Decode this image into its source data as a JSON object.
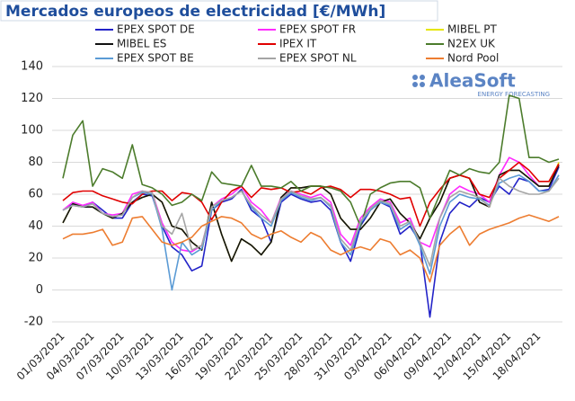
{
  "chart_data": {
    "type": "line",
    "title": "Mercados europeos de electricidad [€/MWh]",
    "logo": "AleaSoft",
    "logo_tagline": "ENERGY FORECASTING",
    "categories": [
      "01/03/2021",
      null,
      null,
      "04/03/2021",
      null,
      null,
      "07/03/2021",
      null,
      null,
      "10/03/2021",
      null,
      null,
      "13/03/2021",
      null,
      null,
      "16/03/2021",
      null,
      null,
      "19/03/2021",
      null,
      null,
      "22/03/2021",
      null,
      null,
      "25/03/2021",
      null,
      null,
      "28/03/2021",
      null,
      null,
      "31/03/2021",
      null,
      null,
      "03/04/2021",
      null,
      null,
      "06/04/2021",
      null,
      null,
      "09/04/2021",
      null,
      null,
      "12/04/2021",
      null,
      null,
      "15/04/2021",
      null,
      null,
      "18/04/2021",
      null,
      null
    ],
    "ylim": [
      -20,
      140
    ],
    "yticks": [
      -20,
      0,
      20,
      40,
      60,
      80,
      100,
      120,
      140
    ],
    "grid": true,
    "series": [
      {
        "name": "EPEX SPOT DE",
        "color": "#2323c8",
        "values": [
          50,
          54,
          52,
          55,
          50,
          45,
          45,
          55,
          60,
          59,
          40,
          27,
          22,
          12,
          15,
          50,
          55,
          57,
          63,
          50,
          45,
          30,
          55,
          60,
          57,
          55,
          56,
          50,
          30,
          18,
          40,
          50,
          55,
          52,
          35,
          40,
          30,
          -17,
          30,
          48,
          55,
          52,
          58,
          55,
          65,
          60,
          70,
          68,
          62,
          63,
          77
        ]
      },
      {
        "name": "EPEX SPOT FR",
        "color": "#ff2bff",
        "values": [
          50,
          55,
          53,
          55,
          48,
          47,
          48,
          60,
          62,
          61,
          42,
          30,
          25,
          24,
          28,
          52,
          57,
          60,
          65,
          55,
          50,
          42,
          58,
          62,
          60,
          58,
          60,
          55,
          35,
          28,
          45,
          52,
          57,
          55,
          42,
          45,
          30,
          27,
          45,
          60,
          65,
          62,
          60,
          55,
          72,
          83,
          80,
          72,
          65,
          65,
          78
        ]
      },
      {
        "name": "MIBEL PT",
        "color": "#e6e600",
        "values": [
          42,
          54,
          52,
          52,
          48,
          45,
          48,
          55,
          58,
          60,
          55,
          40,
          38,
          30,
          25,
          55,
          35,
          18,
          32,
          28,
          22,
          30,
          58,
          64,
          64,
          65,
          65,
          60,
          45,
          38,
          38,
          45,
          55,
          57,
          48,
          42,
          32,
          45,
          55,
          70,
          72,
          70,
          55,
          52,
          72,
          75,
          75,
          70,
          65,
          65,
          80
        ]
      },
      {
        "name": "MIBEL ES",
        "color": "#111111",
        "values": [
          42,
          54,
          52,
          52,
          48,
          45,
          48,
          55,
          58,
          60,
          55,
          40,
          38,
          30,
          25,
          55,
          35,
          18,
          32,
          28,
          22,
          30,
          58,
          64,
          64,
          65,
          65,
          60,
          45,
          38,
          38,
          45,
          55,
          57,
          48,
          42,
          32,
          45,
          55,
          70,
          72,
          70,
          55,
          52,
          72,
          75,
          75,
          70,
          65,
          65,
          78
        ]
      },
      {
        "name": "IPEX IT",
        "color": "#e00000",
        "values": [
          56,
          61,
          62,
          62,
          59,
          57,
          55,
          54,
          60,
          62,
          62,
          56,
          61,
          60,
          55,
          44,
          55,
          62,
          65,
          58,
          64,
          63,
          64,
          61,
          62,
          60,
          64,
          65,
          63,
          58,
          63,
          63,
          62,
          60,
          57,
          58,
          40,
          55,
          63,
          70,
          72,
          70,
          60,
          58,
          70,
          75,
          80,
          75,
          68,
          68,
          79
        ]
      },
      {
        "name": "N2EX UK",
        "color": "#4c7c2c",
        "values": [
          70,
          97,
          106,
          65,
          76,
          74,
          70,
          91,
          66,
          64,
          60,
          53,
          55,
          60,
          56,
          74,
          67,
          66,
          65,
          78,
          65,
          65,
          64,
          68,
          62,
          65,
          65,
          64,
          62,
          55,
          40,
          60,
          64,
          67,
          68,
          68,
          64,
          45,
          60,
          75,
          72,
          76,
          74,
          73,
          80,
          122,
          120,
          83,
          83,
          80,
          82
        ]
      },
      {
        "name": "EPEX SPOT BE",
        "color": "#5b9bd5",
        "values": [
          50,
          53,
          52,
          54,
          48,
          46,
          47,
          58,
          61,
          60,
          38,
          0,
          30,
          22,
          26,
          50,
          56,
          58,
          62,
          52,
          45,
          40,
          56,
          61,
          58,
          56,
          58,
          52,
          30,
          22,
          42,
          50,
          55,
          53,
          38,
          42,
          28,
          10,
          40,
          55,
          60,
          58,
          57,
          53,
          67,
          70,
          72,
          68,
          62,
          62,
          72
        ]
      },
      {
        "name": "EPEX SPOT NL",
        "color": "#a5a5a5",
        "values": [
          50,
          53,
          52,
          54,
          48,
          46,
          47,
          58,
          62,
          61,
          40,
          35,
          48,
          25,
          28,
          52,
          56,
          58,
          62,
          53,
          47,
          42,
          57,
          62,
          59,
          57,
          58,
          53,
          32,
          25,
          43,
          51,
          56,
          54,
          40,
          43,
          30,
          15,
          45,
          58,
          62,
          60,
          58,
          52,
          70,
          65,
          62,
          60,
          60,
          62,
          70
        ]
      },
      {
        "name": "Nord Pool",
        "color": "#ed7d31",
        "values": [
          32,
          35,
          35,
          36,
          38,
          28,
          30,
          45,
          46,
          38,
          30,
          28,
          30,
          33,
          40,
          43,
          46,
          45,
          42,
          35,
          32,
          35,
          37,
          33,
          30,
          36,
          33,
          25,
          22,
          25,
          27,
          25,
          32,
          30,
          22,
          25,
          20,
          5,
          28,
          35,
          40,
          28,
          35,
          38,
          40,
          42,
          45,
          47,
          45,
          43,
          46
        ]
      }
    ]
  }
}
